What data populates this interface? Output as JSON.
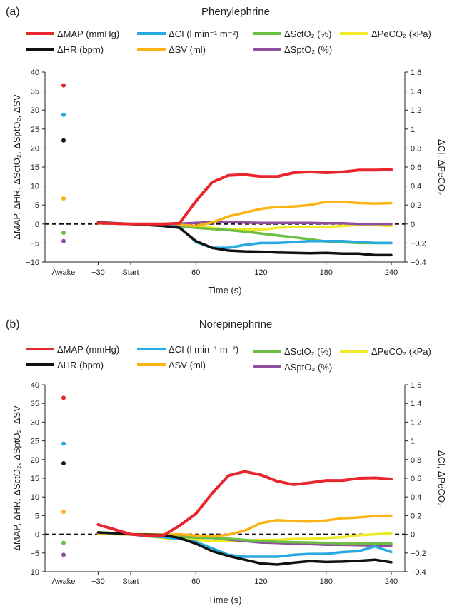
{
  "chart_data": [
    {
      "panel_label": "(a)",
      "title": "Phenylephrine",
      "type": "line",
      "xlabel": "Time (s)",
      "ylabel_left": "ΔMAP, ΔHR, ΔSctO₂, ΔSptO₂, ΔSV",
      "ylabel_right": "ΔCI, ΔPeCO₂",
      "x_tick_labels": [
        "Awake",
        "−30",
        "Start",
        "60",
        "120",
        "180",
        "240"
      ],
      "ylim_left": [
        -10,
        40
      ],
      "ylim_right": [
        -0.4,
        1.6
      ],
      "y_left_ticks": [
        "−10",
        "−5",
        "0",
        "5",
        "10",
        "15",
        "20",
        "25",
        "30",
        "35",
        "40"
      ],
      "y_right_ticks": [
        "−0.4",
        "−0.2",
        "0",
        "0.2",
        "0.4",
        "0.6",
        "0.8",
        "1",
        "1.2",
        "1.4",
        "1.6"
      ],
      "legend": [
        {
          "label": "ΔMAP (mmHg)",
          "color": "#e8262d"
        },
        {
          "label": "ΔCI (l min⁻¹ m⁻²)",
          "color": "#26aae1"
        },
        {
          "label": "ΔSctO₂ (%)",
          "color": "#6cbe45"
        },
        {
          "label": "ΔPeCO₂ (kPa)",
          "color": "#f0e925"
        },
        {
          "label": "ΔHR (bpm)",
          "color": "#111111"
        },
        {
          "label": "ΔSV (ml)",
          "color": "#fbb416"
        },
        {
          "label": "ΔSptO₂ (%)",
          "color": "#8d4f9e"
        }
      ],
      "x": [
        -30,
        0,
        30,
        45,
        60,
        75,
        90,
        105,
        120,
        135,
        150,
        165,
        180,
        195,
        210,
        225,
        240
      ],
      "awake": {
        "MAP": 36.5,
        "CI": 1.15,
        "HR": 22,
        "SV": 6.7,
        "SctO2": -2.3,
        "SptO2": -4.5
      },
      "series": [
        {
          "key": "MAP",
          "axis": "left",
          "values": [
            0.3,
            0,
            0,
            0.2,
            6,
            11,
            12.8,
            13,
            12.5,
            12.5,
            13.5,
            13.7,
            13.5,
            13.7,
            14.2,
            14.2,
            14.3
          ]
        },
        {
          "key": "HR",
          "axis": "left",
          "values": [
            0.4,
            0,
            -0.5,
            -1,
            -4.5,
            -6.3,
            -7,
            -7.2,
            -7.3,
            -7.5,
            -7.6,
            -7.7,
            -7.6,
            -7.8,
            -7.8,
            -8.2,
            -8.2
          ]
        },
        {
          "key": "SV",
          "axis": "left",
          "values": [
            0.2,
            0,
            0,
            -0.2,
            -0.5,
            0.4,
            2,
            3,
            4,
            4.5,
            4.6,
            5,
            5.8,
            5.8,
            5.5,
            5.4,
            5.5
          ]
        },
        {
          "key": "SctO2",
          "axis": "left",
          "values": [
            0.3,
            0,
            -0.3,
            -0.6,
            -1,
            -1.3,
            -1.6,
            -2,
            -2.5,
            -3,
            -3.5,
            -4,
            -4.6,
            -4.8,
            -5,
            -5,
            -5
          ]
        },
        {
          "key": "SptO2",
          "axis": "left",
          "values": [
            0.2,
            0,
            0,
            0.1,
            0.3,
            0.5,
            0.5,
            0.4,
            0.3,
            0.3,
            0.3,
            0.3,
            0.2,
            0.2,
            0,
            0,
            0
          ]
        },
        {
          "key": "CI",
          "axis": "right",
          "values": [
            0.02,
            0,
            -0.01,
            -0.03,
            -0.19,
            -0.25,
            -0.25,
            -0.22,
            -0.2,
            -0.2,
            -0.19,
            -0.18,
            -0.18,
            -0.18,
            -0.19,
            -0.2,
            -0.2
          ]
        },
        {
          "key": "PeCO2",
          "axis": "right",
          "values": [
            0.01,
            0,
            -0.01,
            -0.02,
            -0.02,
            -0.04,
            -0.06,
            -0.06,
            -0.06,
            -0.04,
            -0.03,
            -0.03,
            -0.03,
            -0.02,
            -0.01,
            -0.01,
            -0.02
          ]
        }
      ]
    },
    {
      "panel_label": "(b)",
      "title": "Norepinephrine",
      "type": "line",
      "xlabel": "Time (s)",
      "ylabel_left": "ΔMAP, ΔHR, ΔSctO₂, ΔSptO₂, ΔSV",
      "ylabel_right": "ΔCI, ΔPeCO₂",
      "x_tick_labels": [
        "Awake",
        "−30",
        "Start",
        "60",
        "120",
        "180",
        "240"
      ],
      "ylim_left": [
        -10,
        40
      ],
      "ylim_right": [
        -0.4,
        1.6
      ],
      "y_left_ticks": [
        "−10",
        "−5",
        "0",
        "5",
        "10",
        "15",
        "20",
        "25",
        "30",
        "35",
        "40"
      ],
      "y_right_ticks": [
        "−0.4",
        "−0.2",
        "0",
        "0.2",
        "0.4",
        "0.6",
        "0.8",
        "1",
        "1.2",
        "1.4",
        "1.6"
      ],
      "legend": [
        {
          "label": "ΔMAP (mmHg)",
          "color": "#e8262d"
        },
        {
          "label": "ΔCI (l min⁻¹ m⁻²)",
          "color": "#26aae1"
        },
        {
          "label": "ΔSctO₂ (%)",
          "color": "#6cbe45"
        },
        {
          "label": "ΔPeCO₂ (kPa)",
          "color": "#f0e925"
        },
        {
          "label": "ΔHR (bpm)",
          "color": "#111111"
        },
        {
          "label": "ΔSV (ml)",
          "color": "#fbb416"
        },
        {
          "label": "ΔSptO₂ (%)",
          "color": "#8d4f9e"
        }
      ],
      "x": [
        -30,
        -15,
        0,
        15,
        30,
        45,
        60,
        75,
        90,
        105,
        120,
        135,
        150,
        165,
        180,
        195,
        210,
        225,
        240
      ],
      "awake": {
        "MAP": 36.5,
        "CI": 0.97,
        "HR": 19,
        "SV": 6,
        "SctO2": -2.3,
        "SptO2": -5.5
      },
      "series": [
        {
          "key": "MAP",
          "axis": "left",
          "values": [
            2.6,
            1.3,
            0,
            -0.3,
            -0.3,
            2.3,
            5.5,
            11,
            15.7,
            16.8,
            15.9,
            14.2,
            13.3,
            13.8,
            14.4,
            14.4,
            15,
            15.1,
            14.8
          ]
        },
        {
          "key": "HR",
          "axis": "left",
          "values": [
            0.5,
            0.3,
            0,
            -0.1,
            -0.2,
            -1,
            -2.5,
            -4.5,
            -5.8,
            -6.8,
            -7.8,
            -8.1,
            -7.6,
            -7.2,
            -7.4,
            -7.3,
            -7.1,
            -6.8,
            -7.5
          ]
        },
        {
          "key": "SV",
          "axis": "left",
          "values": [
            0.2,
            0.1,
            0,
            0,
            -0.1,
            0,
            -0.3,
            -0.5,
            -0.1,
            1,
            3,
            3.8,
            3.5,
            3.4,
            3.7,
            4.3,
            4.5,
            4.9,
            5
          ]
        },
        {
          "key": "SctO2",
          "axis": "left",
          "values": [
            0.5,
            0.3,
            0,
            -0.3,
            -0.5,
            -0.7,
            -0.9,
            -1,
            -1.2,
            -1.5,
            -1.8,
            -2,
            -2.1,
            -2.2,
            -2.3,
            -2.4,
            -2.4,
            -2.5,
            -2.5
          ]
        },
        {
          "key": "SptO2",
          "axis": "left",
          "values": [
            0.2,
            0.1,
            0,
            -0.1,
            -0.2,
            -0.4,
            -0.7,
            -1,
            -1.4,
            -1.8,
            -2.2,
            -2.3,
            -2.5,
            -2.6,
            -2.8,
            -2.8,
            -2.9,
            -3,
            -3
          ]
        },
        {
          "key": "CI",
          "axis": "right",
          "values": [
            0.02,
            0.01,
            0,
            -0.02,
            -0.03,
            -0.05,
            -0.08,
            -0.15,
            -0.22,
            -0.24,
            -0.24,
            -0.24,
            -0.22,
            -0.21,
            -0.21,
            -0.19,
            -0.18,
            -0.13,
            -0.19
          ]
        },
        {
          "key": "PeCO2",
          "axis": "right",
          "values": [
            0.01,
            0,
            0,
            -0.02,
            -0.04,
            -0.05,
            -0.06,
            -0.07,
            -0.07,
            -0.07,
            -0.06,
            -0.06,
            -0.05,
            -0.05,
            -0.04,
            -0.03,
            -0.01,
            0,
            0.01
          ]
        }
      ]
    }
  ]
}
